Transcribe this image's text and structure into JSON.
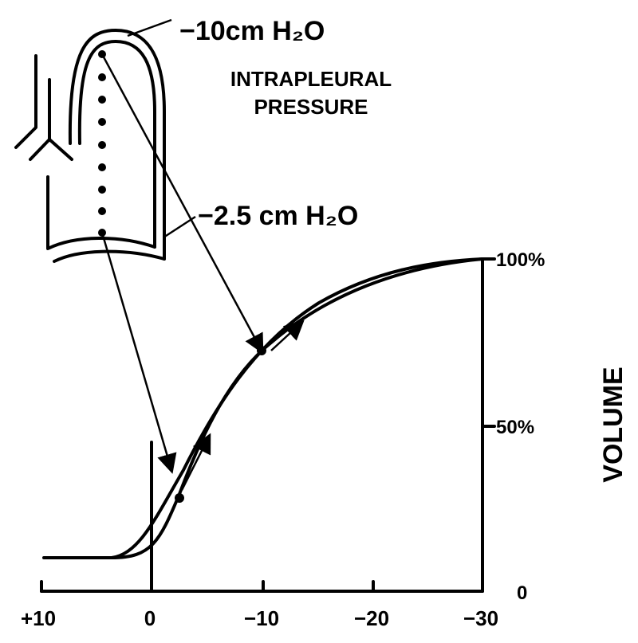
{
  "labels": {
    "top_pressure": "−10cm H₂O",
    "title_line1": "INTRAPLEURAL",
    "title_line2": "PRESSURE",
    "bottom_pressure": "−2.5 cm H₂O",
    "y_axis": "VOLUME"
  },
  "x_ticks": [
    "+10",
    "0",
    "−10",
    "−20",
    "−30"
  ],
  "y_ticks": [
    "100%",
    "50%",
    "0"
  ]
}
